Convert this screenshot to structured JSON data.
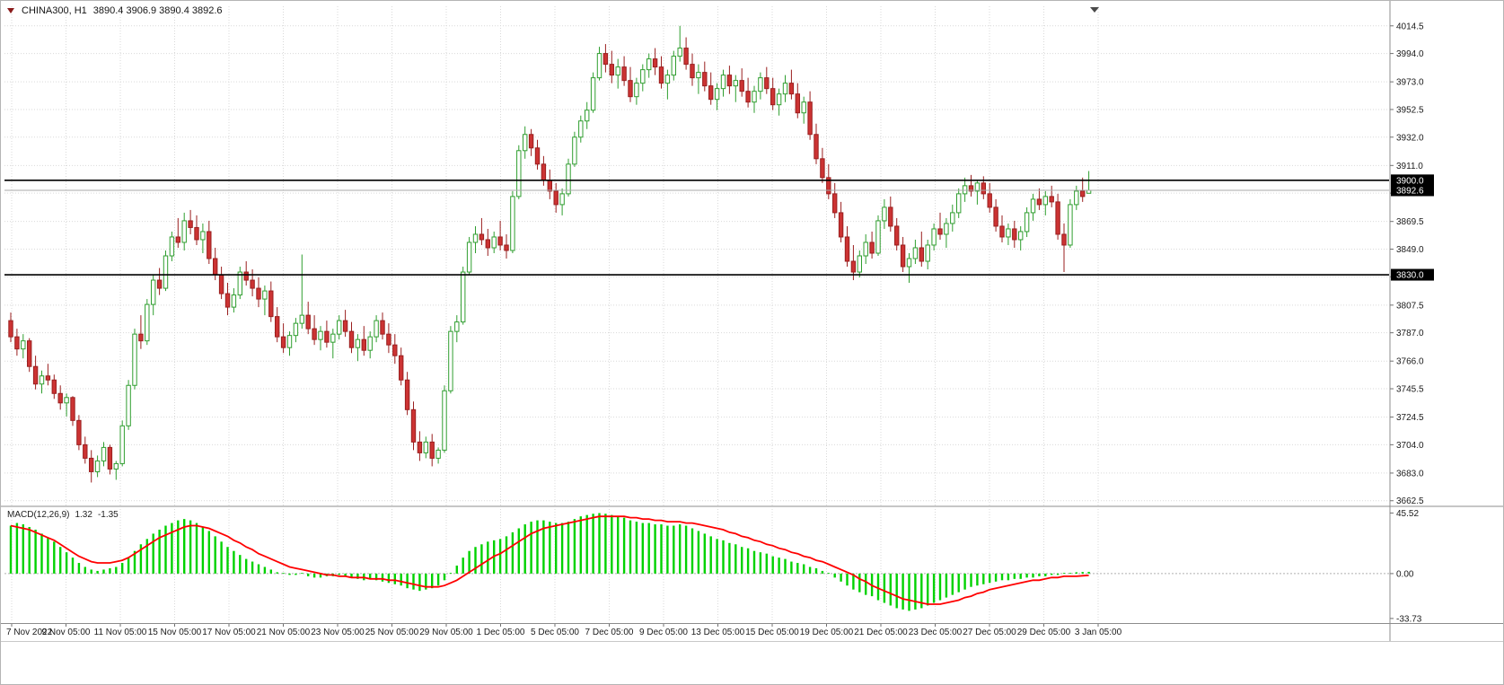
{
  "header": {
    "symbol_period": "CHINA300, H1",
    "ohlc_text": "3890.4 3906.9 3890.4 3892.6"
  },
  "macd_header": {
    "label": "MACD(12,26,9)",
    "main_value": "1.32",
    "signal_value": "-1.35"
  },
  "chart_data": {
    "type": "candlestick",
    "title": "CHINA300, H1",
    "symbol": "CHINA300",
    "timeframe": "H1",
    "current_bar": {
      "open": 3890.4,
      "high": 3906.9,
      "low": 3890.4,
      "close": 3892.6
    },
    "last_price": 3892.6,
    "horizontal_lines": [
      {
        "price": 3900.0
      },
      {
        "price": 3830.0
      }
    ],
    "price_badges": [
      {
        "label": "3900.0",
        "price": 3900.0
      },
      {
        "label": "3892.6",
        "price": 3892.6
      },
      {
        "label": "3830.0",
        "price": 3830.0
      }
    ],
    "price_scale": {
      "min": 3659,
      "max": 4029,
      "ticks": [
        "4014.5",
        "3994.0",
        "3973.0",
        "3952.5",
        "3932.0",
        "3911.0",
        "3890.5",
        "3869.5",
        "3849.0",
        "3828.5",
        "3807.5",
        "3787.0",
        "3766.0",
        "3745.5",
        "3724.5",
        "3704.0",
        "3683.0",
        "3662.5"
      ]
    },
    "time_labels": [
      "7 Nov 2022",
      "9 Nov 05:00",
      "11 Nov 05:00",
      "15 Nov 05:00",
      "17 Nov 05:00",
      "21 Nov 05:00",
      "23 Nov 05:00",
      "25 Nov 05:00",
      "29 Nov 05:00",
      "1 Dec 05:00",
      "5 Dec 05:00",
      "7 Dec 05:00",
      "9 Dec 05:00",
      "13 Dec 05:00",
      "15 Dec 05:00",
      "19 Dec 05:00",
      "21 Dec 05:00",
      "23 Dec 05:00",
      "27 Dec 05:00",
      "29 Dec 05:00",
      "3 Jan 05:00"
    ],
    "candles": [
      [
        3796,
        3802,
        3780,
        3784
      ],
      [
        3784,
        3790,
        3770,
        3775
      ],
      [
        3775,
        3786,
        3768,
        3781
      ],
      [
        3781,
        3783,
        3758,
        3762
      ],
      [
        3762,
        3770,
        3745,
        3749
      ],
      [
        3749,
        3759,
        3742,
        3755
      ],
      [
        3755,
        3764,
        3748,
        3752
      ],
      [
        3752,
        3756,
        3738,
        3742
      ],
      [
        3742,
        3748,
        3730,
        3735
      ],
      [
        3735,
        3742,
        3725,
        3739
      ],
      [
        3739,
        3740,
        3718,
        3722
      ],
      [
        3722,
        3726,
        3700,
        3704
      ],
      [
        3704,
        3710,
        3690,
        3694
      ],
      [
        3694,
        3700,
        3676,
        3684
      ],
      [
        3684,
        3696,
        3680,
        3692
      ],
      [
        3692,
        3706,
        3688,
        3702
      ],
      [
        3702,
        3704,
        3682,
        3686
      ],
      [
        3686,
        3692,
        3678,
        3690
      ],
      [
        3690,
        3722,
        3688,
        3718
      ],
      [
        3718,
        3752,
        3715,
        3748
      ],
      [
        3748,
        3790,
        3745,
        3786
      ],
      [
        3786,
        3800,
        3775,
        3781
      ],
      [
        3781,
        3812,
        3778,
        3808
      ],
      [
        3808,
        3830,
        3800,
        3826
      ],
      [
        3826,
        3835,
        3815,
        3820
      ],
      [
        3820,
        3848,
        3818,
        3844
      ],
      [
        3844,
        3862,
        3840,
        3858
      ],
      [
        3858,
        3872,
        3850,
        3854
      ],
      [
        3854,
        3876,
        3848,
        3870
      ],
      [
        3870,
        3878,
        3860,
        3865
      ],
      [
        3865,
        3874,
        3852,
        3856
      ],
      [
        3856,
        3868,
        3846,
        3862
      ],
      [
        3862,
        3870,
        3838,
        3842
      ],
      [
        3842,
        3850,
        3826,
        3830
      ],
      [
        3830,
        3836,
        3812,
        3816
      ],
      [
        3816,
        3824,
        3800,
        3806
      ],
      [
        3806,
        3820,
        3802,
        3815
      ],
      [
        3815,
        3836,
        3812,
        3832
      ],
      [
        3832,
        3840,
        3822,
        3826
      ],
      [
        3826,
        3834,
        3814,
        3820
      ],
      [
        3820,
        3828,
        3806,
        3812
      ],
      [
        3812,
        3822,
        3800,
        3818
      ],
      [
        3818,
        3825,
        3795,
        3799
      ],
      [
        3799,
        3806,
        3780,
        3784
      ],
      [
        3784,
        3794,
        3772,
        3776
      ],
      [
        3776,
        3788,
        3770,
        3785
      ],
      [
        3785,
        3798,
        3780,
        3794
      ],
      [
        3794,
        3845,
        3790,
        3800
      ],
      [
        3800,
        3810,
        3786,
        3790
      ],
      [
        3790,
        3800,
        3778,
        3782
      ],
      [
        3782,
        3792,
        3774,
        3788
      ],
      [
        3788,
        3796,
        3776,
        3780
      ],
      [
        3780,
        3790,
        3768,
        3786
      ],
      [
        3786,
        3800,
        3782,
        3796
      ],
      [
        3796,
        3804,
        3784,
        3788
      ],
      [
        3788,
        3795,
        3772,
        3776
      ],
      [
        3776,
        3786,
        3766,
        3782
      ],
      [
        3782,
        3792,
        3770,
        3774
      ],
      [
        3774,
        3788,
        3768,
        3784
      ],
      [
        3784,
        3800,
        3780,
        3796
      ],
      [
        3796,
        3802,
        3782,
        3786
      ],
      [
        3786,
        3794,
        3772,
        3778
      ],
      [
        3778,
        3786,
        3764,
        3770
      ],
      [
        3770,
        3776,
        3748,
        3752
      ],
      [
        3752,
        3758,
        3726,
        3730
      ],
      [
        3730,
        3736,
        3700,
        3706
      ],
      [
        3706,
        3714,
        3692,
        3698
      ],
      [
        3698,
        3710,
        3694,
        3706
      ],
      [
        3706,
        3712,
        3688,
        3694
      ],
      [
        3694,
        3702,
        3690,
        3700
      ],
      [
        3700,
        3748,
        3698,
        3744
      ],
      [
        3744,
        3792,
        3742,
        3788
      ],
      [
        3788,
        3800,
        3780,
        3795
      ],
      [
        3795,
        3836,
        3793,
        3832
      ],
      [
        3832,
        3858,
        3830,
        3854
      ],
      [
        3854,
        3866,
        3846,
        3860
      ],
      [
        3860,
        3872,
        3852,
        3856
      ],
      [
        3856,
        3864,
        3844,
        3850
      ],
      [
        3850,
        3862,
        3846,
        3858
      ],
      [
        3858,
        3870,
        3848,
        3852
      ],
      [
        3852,
        3860,
        3842,
        3848
      ],
      [
        3848,
        3892,
        3846,
        3888
      ],
      [
        3888,
        3926,
        3886,
        3922
      ],
      [
        3922,
        3940,
        3916,
        3934
      ],
      [
        3934,
        3938,
        3918,
        3924
      ],
      [
        3924,
        3930,
        3908,
        3912
      ],
      [
        3912,
        3918,
        3896,
        3900
      ],
      [
        3900,
        3908,
        3886,
        3892
      ],
      [
        3892,
        3898,
        3876,
        3882
      ],
      [
        3882,
        3894,
        3874,
        3890
      ],
      [
        3890,
        3916,
        3888,
        3912
      ],
      [
        3912,
        3936,
        3910,
        3932
      ],
      [
        3932,
        3948,
        3928,
        3944
      ],
      [
        3944,
        3958,
        3938,
        3952
      ],
      [
        3952,
        3980,
        3950,
        3976
      ],
      [
        3976,
        3999,
        3974,
        3994
      ],
      [
        3994,
        4001,
        3980,
        3986
      ],
      [
        3986,
        3996,
        3972,
        3978
      ],
      [
        3978,
        3990,
        3968,
        3984
      ],
      [
        3984,
        3992,
        3970,
        3974
      ],
      [
        3974,
        3984,
        3958,
        3962
      ],
      [
        3962,
        3976,
        3956,
        3972
      ],
      [
        3972,
        3986,
        3966,
        3982
      ],
      [
        3982,
        3994,
        3976,
        3990
      ],
      [
        3990,
        3998,
        3978,
        3984
      ],
      [
        3984,
        3992,
        3968,
        3972
      ],
      [
        3972,
        3982,
        3960,
        3978
      ],
      [
        3978,
        3996,
        3974,
        3992
      ],
      [
        3992,
        4014.5,
        3988,
        3998
      ],
      [
        3998,
        4006,
        3982,
        3986
      ],
      [
        3986,
        3994,
        3970,
        3976
      ],
      [
        3976,
        3986,
        3964,
        3980
      ],
      [
        3980,
        3988,
        3966,
        3970
      ],
      [
        3970,
        3980,
        3956,
        3960
      ],
      [
        3960,
        3972,
        3952,
        3968
      ],
      [
        3968,
        3982,
        3962,
        3978
      ],
      [
        3978,
        3985,
        3964,
        3970
      ],
      [
        3970,
        3978,
        3958,
        3974
      ],
      [
        3974,
        3983,
        3962,
        3966
      ],
      [
        3966,
        3976,
        3954,
        3958
      ],
      [
        3958,
        3970,
        3950,
        3966
      ],
      [
        3966,
        3980,
        3960,
        3976
      ],
      [
        3976,
        3984,
        3964,
        3968
      ],
      [
        3968,
        3976,
        3952,
        3956
      ],
      [
        3956,
        3968,
        3948,
        3964
      ],
      [
        3964,
        3978,
        3958,
        3972
      ],
      [
        3972,
        3982,
        3960,
        3964
      ],
      [
        3964,
        3972,
        3946,
        3950
      ],
      [
        3950,
        3962,
        3942,
        3958
      ],
      [
        3958,
        3966,
        3930,
        3934
      ],
      [
        3934,
        3942,
        3912,
        3916
      ],
      [
        3916,
        3924,
        3898,
        3902
      ],
      [
        3902,
        3912,
        3886,
        3890
      ],
      [
        3890,
        3898,
        3872,
        3876
      ],
      [
        3876,
        3884,
        3854,
        3858
      ],
      [
        3858,
        3866,
        3836,
        3840
      ],
      [
        3840,
        3852,
        3826,
        3832
      ],
      [
        3832,
        3848,
        3828,
        3844
      ],
      [
        3844,
        3860,
        3838,
        3854
      ],
      [
        3854,
        3862,
        3842,
        3846
      ],
      [
        3846,
        3874,
        3844,
        3870
      ],
      [
        3870,
        3886,
        3864,
        3880
      ],
      [
        3880,
        3888,
        3862,
        3866
      ],
      [
        3866,
        3872,
        3848,
        3852
      ],
      [
        3852,
        3858,
        3832,
        3836
      ],
      [
        3836,
        3846,
        3824,
        3842
      ],
      [
        3842,
        3856,
        3838,
        3850
      ],
      [
        3850,
        3862,
        3836,
        3840
      ],
      [
        3840,
        3856,
        3834,
        3852
      ],
      [
        3852,
        3868,
        3848,
        3864
      ],
      [
        3864,
        3876,
        3856,
        3860
      ],
      [
        3860,
        3872,
        3850,
        3868
      ],
      [
        3868,
        3882,
        3862,
        3876
      ],
      [
        3876,
        3894,
        3872,
        3890
      ],
      [
        3890,
        3902,
        3884,
        3896
      ],
      [
        3896,
        3904,
        3888,
        3892
      ],
      [
        3892,
        3900,
        3882,
        3898
      ],
      [
        3898,
        3903,
        3886,
        3890
      ],
      [
        3890,
        3898,
        3876,
        3880
      ],
      [
        3880,
        3886,
        3862,
        3866
      ],
      [
        3866,
        3874,
        3854,
        3858
      ],
      [
        3858,
        3868,
        3852,
        3864
      ],
      [
        3864,
        3870,
        3850,
        3856
      ],
      [
        3856,
        3866,
        3848,
        3862
      ],
      [
        3862,
        3880,
        3858,
        3876
      ],
      [
        3876,
        3890,
        3870,
        3886
      ],
      [
        3886,
        3894,
        3878,
        3882
      ],
      [
        3882,
        3892,
        3874,
        3888
      ],
      [
        3888,
        3896,
        3880,
        3884
      ],
      [
        3884,
        3890,
        3856,
        3860
      ],
      [
        3860,
        3868,
        3832,
        3852
      ],
      [
        3852,
        3886,
        3850,
        3882
      ],
      [
        3882,
        3896,
        3878,
        3892
      ],
      [
        3892,
        3902,
        3884,
        3888
      ],
      [
        3890.4,
        3906.9,
        3890.4,
        3892.6
      ]
    ],
    "macd": {
      "name": "MACD(12,26,9)",
      "main_value": 1.32,
      "signal_value": -1.35,
      "axis_ticks": [
        "45.52",
        "0.00",
        "-33.73"
      ],
      "scale": {
        "min": -36.5,
        "max": 48.5
      },
      "histogram": [
        36,
        38,
        37,
        35,
        33,
        30,
        27,
        24,
        20,
        16,
        12,
        8,
        5,
        3,
        2,
        3,
        4,
        5,
        8,
        12,
        17,
        22,
        26,
        30,
        33,
        36,
        38,
        40,
        41,
        40,
        38,
        35,
        32,
        28,
        24,
        20,
        17,
        14,
        11,
        9,
        7,
        5,
        3,
        1,
        0,
        -1,
        -1,
        0,
        -2,
        -3,
        -3,
        -2,
        -2,
        -1,
        -2,
        -3,
        -4,
        -5,
        -4,
        -5,
        -6,
        -7,
        -8,
        -9,
        -11,
        -12,
        -13,
        -12,
        -11,
        -9,
        -5,
        0,
        6,
        12,
        17,
        20,
        22,
        24,
        25,
        26,
        28,
        31,
        34,
        37,
        39,
        40,
        40,
        39,
        38,
        38,
        39,
        41,
        43,
        44,
        45,
        45.5,
        45,
        44,
        43,
        42,
        40,
        39,
        38,
        38,
        37,
        37,
        36,
        36,
        37,
        36,
        34,
        32,
        30,
        28,
        26,
        25,
        23,
        22,
        20,
        19,
        17,
        16,
        15,
        13,
        12,
        11,
        9,
        8,
        7,
        5,
        4,
        2,
        0,
        -3,
        -6,
        -9,
        -12,
        -14,
        -16,
        -17,
        -20,
        -22,
        -24,
        -26,
        -27,
        -28,
        -27,
        -26,
        -24,
        -22,
        -20,
        -18,
        -16,
        -14,
        -12,
        -10,
        -9,
        -8,
        -7,
        -6,
        -5,
        -5,
        -4,
        -4,
        -3,
        -3,
        -2,
        -2,
        -1,
        -1,
        0,
        0,
        1,
        1.2,
        1.32
      ],
      "signal": [
        36,
        35,
        34,
        33,
        31,
        29,
        27,
        25,
        22,
        19,
        16,
        13,
        11,
        9,
        8,
        8,
        8,
        9,
        10,
        12,
        15,
        18,
        21,
        24,
        27,
        29,
        31,
        33,
        35,
        36,
        36,
        35,
        34,
        32,
        30,
        28,
        25,
        23,
        20,
        18,
        15,
        13,
        11,
        9,
        7,
        5,
        4,
        3,
        2,
        1,
        0,
        -1,
        -1,
        -2,
        -2,
        -3,
        -3,
        -3,
        -4,
        -4,
        -4,
        -5,
        -5,
        -6,
        -7,
        -8,
        -9,
        -10,
        -10,
        -10,
        -9,
        -7,
        -5,
        -2,
        1,
        4,
        7,
        10,
        13,
        15,
        18,
        21,
        24,
        27,
        30,
        32,
        34,
        35,
        36,
        37,
        38,
        39,
        40,
        41,
        42,
        43,
        43,
        43,
        43,
        43,
        42,
        42,
        41,
        41,
        40,
        40,
        39,
        39,
        39,
        38,
        38,
        37,
        36,
        35,
        34,
        33,
        31,
        30,
        28,
        27,
        25,
        24,
        22,
        21,
        19,
        18,
        16,
        15,
        13,
        12,
        10,
        9,
        7,
        5,
        3,
        1,
        -1,
        -4,
        -6,
        -9,
        -11,
        -13,
        -15,
        -17,
        -19,
        -20,
        -21,
        -22,
        -23,
        -23,
        -23,
        -22,
        -21,
        -20,
        -18,
        -17,
        -15,
        -14,
        -12,
        -11,
        -10,
        -9,
        -8,
        -7,
        -6,
        -5,
        -5,
        -4,
        -3,
        -3,
        -2,
        -2,
        -2,
        -1.6,
        -1.35
      ]
    },
    "colors": {
      "bull_border": "#2f9e2f",
      "bull_fill": "#ffffff",
      "bear_border": "#9a1f1f",
      "bear_fill": "#cc3333",
      "macd_histogram": "#00d200",
      "macd_signal": "#ff0000",
      "grid": "#d9d9d9",
      "level_line": "#000000",
      "last_price_line": "#a8a8a8",
      "badge_bg": "#000000",
      "badge_text": "#ffffff",
      "axis_text": "#1a1a1a"
    }
  }
}
